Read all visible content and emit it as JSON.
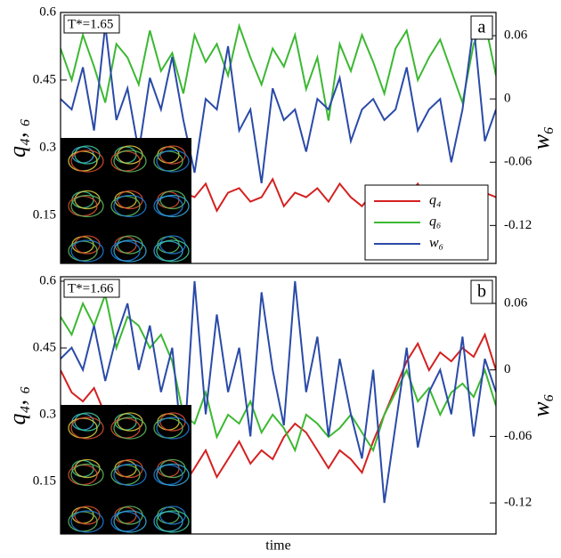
{
  "chart_data": [
    {
      "type": "line",
      "annotation": "T*=1.65",
      "panel_label": "a",
      "ylabel": "q₄, ₆",
      "y2label": "w₆",
      "ylim": [
        0.043,
        0.6
      ],
      "yticks": [
        0.15,
        0.3,
        0.45,
        0.6
      ],
      "y2lim": [
        -0.156,
        0.082
      ],
      "y2ticks": [
        -0.12,
        -0.06,
        0,
        0.06
      ],
      "legend": "lower right",
      "series": [
        {
          "name": "q₄",
          "color": "#d42020",
          "values": [
            0.2,
            0.18,
            0.21,
            0.19,
            0.17,
            0.2,
            0.22,
            0.18,
            0.19,
            0.21,
            0.17,
            0.2,
            0.19,
            0.22,
            0.16,
            0.2,
            0.21,
            0.18,
            0.19,
            0.23,
            0.17,
            0.2,
            0.19,
            0.21,
            0.18,
            0.22,
            0.19,
            0.17,
            0.2,
            0.21,
            0.18,
            0.19,
            0.22,
            0.17,
            0.2,
            0.19,
            0.21,
            0.18,
            0.2,
            0.19
          ]
        },
        {
          "name": "q₆",
          "color": "#3cb832",
          "values": [
            0.52,
            0.45,
            0.55,
            0.48,
            0.4,
            0.53,
            0.5,
            0.44,
            0.56,
            0.47,
            0.51,
            0.42,
            0.55,
            0.49,
            0.53,
            0.46,
            0.57,
            0.5,
            0.44,
            0.52,
            0.48,
            0.55,
            0.43,
            0.5,
            0.36,
            0.53,
            0.47,
            0.55,
            0.49,
            0.42,
            0.52,
            0.56,
            0.45,
            0.5,
            0.54,
            0.47,
            0.4,
            0.53,
            0.58,
            0.46
          ]
        },
        {
          "name": "w₆",
          "color": "#2a4aa8",
          "axis": "y2",
          "values": [
            0.0,
            -0.01,
            0.03,
            -0.03,
            0.07,
            -0.02,
            0.01,
            -0.05,
            0.02,
            -0.01,
            0.04,
            -0.02,
            -0.07,
            0.0,
            -0.01,
            0.05,
            -0.03,
            -0.01,
            -0.08,
            0.01,
            -0.02,
            -0.01,
            -0.05,
            0.0,
            -0.01,
            0.02,
            -0.04,
            -0.01,
            0.0,
            -0.02,
            -0.01,
            0.03,
            -0.03,
            -0.01,
            0.0,
            -0.06,
            -0.01,
            0.07,
            -0.04,
            -0.01
          ]
        }
      ]
    },
    {
      "type": "line",
      "annotation": "T*=1.66",
      "panel_label": "b",
      "ylabel": "q₄, ₆",
      "y2label": "w₆",
      "xlabel": "time",
      "ylim": [
        0.032,
        0.61
      ],
      "yticks": [
        0.15,
        0.3,
        0.45,
        0.6
      ],
      "y2lim": [
        -0.148,
        0.084
      ],
      "y2ticks": [
        -0.12,
        -0.06,
        0,
        0.06
      ],
      "series": [
        {
          "color": "#d42020",
          "values": [
            0.4,
            0.35,
            0.33,
            0.36,
            0.3,
            0.28,
            0.32,
            0.3,
            0.27,
            0.25,
            0.2,
            0.14,
            0.18,
            0.22,
            0.16,
            0.2,
            0.24,
            0.19,
            0.22,
            0.2,
            0.25,
            0.28,
            0.26,
            0.22,
            0.18,
            0.22,
            0.2,
            0.17,
            0.24,
            0.3,
            0.36,
            0.42,
            0.46,
            0.4,
            0.44,
            0.42,
            0.45,
            0.43,
            0.48,
            0.4
          ]
        },
        {
          "color": "#3cb832",
          "values": [
            0.52,
            0.48,
            0.55,
            0.5,
            0.57,
            0.45,
            0.52,
            0.5,
            0.45,
            0.48,
            0.42,
            0.3,
            0.28,
            0.35,
            0.25,
            0.3,
            0.28,
            0.33,
            0.26,
            0.3,
            0.27,
            0.22,
            0.3,
            0.28,
            0.25,
            0.27,
            0.3,
            0.26,
            0.22,
            0.3,
            0.35,
            0.4,
            0.33,
            0.36,
            0.3,
            0.35,
            0.37,
            0.34,
            0.4,
            0.32
          ]
        },
        {
          "color": "#2a4aa8",
          "axis": "y2",
          "values": [
            0.01,
            0.02,
            0.0,
            0.04,
            -0.01,
            0.03,
            0.06,
            0.0,
            0.04,
            -0.02,
            0.02,
            -0.08,
            0.08,
            -0.04,
            0.05,
            -0.02,
            0.02,
            -0.06,
            0.07,
            0.0,
            -0.05,
            0.08,
            -0.02,
            0.03,
            -0.06,
            0.01,
            -0.04,
            -0.08,
            0.0,
            -0.12,
            -0.05,
            0.02,
            -0.07,
            -0.02,
            0.0,
            -0.04,
            0.03,
            -0.06,
            0.01,
            -0.02
          ]
        }
      ]
    }
  ]
}
